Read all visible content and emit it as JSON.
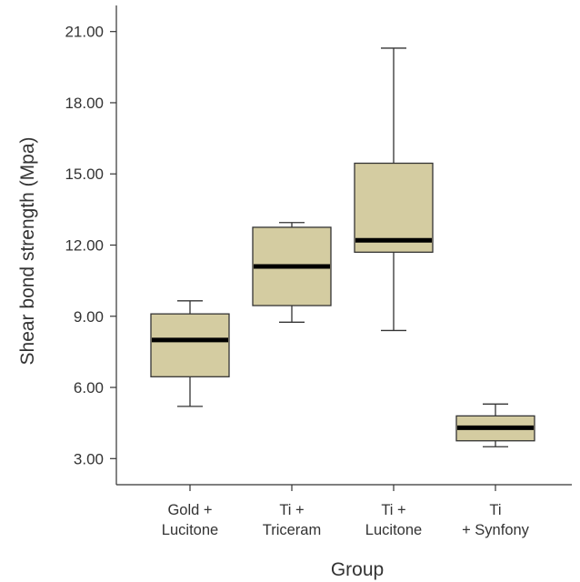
{
  "chart_data": {
    "type": "box",
    "xlabel": "Group",
    "ylabel": "Shear bond strength (Mpa)",
    "ylim": [
      1.9,
      22.1
    ],
    "yticks": [
      "3.00",
      "6.00",
      "9.00",
      "12.00",
      "15.00",
      "18.00",
      "21.00"
    ],
    "categories": [
      [
        "Gold +",
        "Lucitone"
      ],
      [
        "Ti +",
        "Triceram"
      ],
      [
        "Ti +",
        "Lucitone"
      ],
      [
        "Ti",
        "+ Synfony"
      ]
    ],
    "series": [
      {
        "min": 5.2,
        "q1": 6.45,
        "median": 8.0,
        "q3": 9.1,
        "max": 9.65
      },
      {
        "min": 8.75,
        "q1": 9.45,
        "median": 11.1,
        "q3": 12.75,
        "max": 12.95
      },
      {
        "min": 8.4,
        "q1": 11.7,
        "median": 12.2,
        "q3": 15.45,
        "max": 20.3
      },
      {
        "min": 3.5,
        "q1": 3.75,
        "median": 4.3,
        "q3": 4.8,
        "max": 5.3
      }
    ],
    "box_color": "#d4cca1",
    "grid": false,
    "legend": "none"
  }
}
